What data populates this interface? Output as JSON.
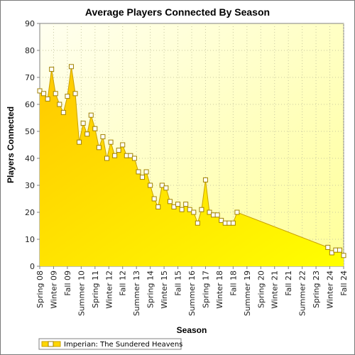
{
  "chart_data": {
    "type": "area",
    "title": "Average Players Connected By Season",
    "xlabel": "Season",
    "ylabel": "Players Connected",
    "ylim": [
      0,
      90
    ],
    "yticks": [
      0,
      10,
      20,
      30,
      40,
      50,
      60,
      70,
      80,
      90
    ],
    "grid": true,
    "legend_position": "bottom-left",
    "x_tick_labels": [
      "Spring 08",
      "Winter 09",
      "Fall 09",
      "Summer 10",
      "Spring 11",
      "Winter 12",
      "Fall 12",
      "Summer 13",
      "Spring 14",
      "Winter 15",
      "Fall 15",
      "Summer 16",
      "Spring 17",
      "Winter 18",
      "Fall 18",
      "Summer 19",
      "Spring 20",
      "Winter 21",
      "Fall 21",
      "Summer 22",
      "Spring 23",
      "Winter 24",
      "Fall 24"
    ],
    "series": [
      {
        "name": "Imperian: The Sundered Heavens",
        "color": "#ffd700",
        "values": [
          65,
          64,
          62,
          73,
          64,
          60,
          57,
          63,
          74,
          64,
          46,
          53,
          49,
          56,
          51,
          44,
          48,
          40,
          46,
          41,
          43,
          45,
          41,
          41,
          40,
          35,
          33,
          35,
          30,
          25,
          22,
          30,
          29,
          24,
          22,
          23,
          21,
          23,
          21,
          20,
          16,
          21,
          32,
          20,
          19,
          19,
          17,
          16,
          16,
          16,
          20,
          null,
          null,
          null,
          null,
          null,
          null,
          null,
          null,
          null,
          null,
          null,
          null,
          null,
          null,
          null,
          null,
          null,
          null,
          null,
          null,
          null,
          null,
          7,
          5,
          6,
          6,
          4
        ]
      }
    ]
  },
  "colors": {
    "plot_background_top": "#fffff0",
    "plot_background_bottom": "#ffff99",
    "area_top": "#ffd000",
    "area_bottom": "#ffff00",
    "line": "#c9a100",
    "marker_fill": "#ffffff",
    "marker_stroke": "#a08000"
  }
}
